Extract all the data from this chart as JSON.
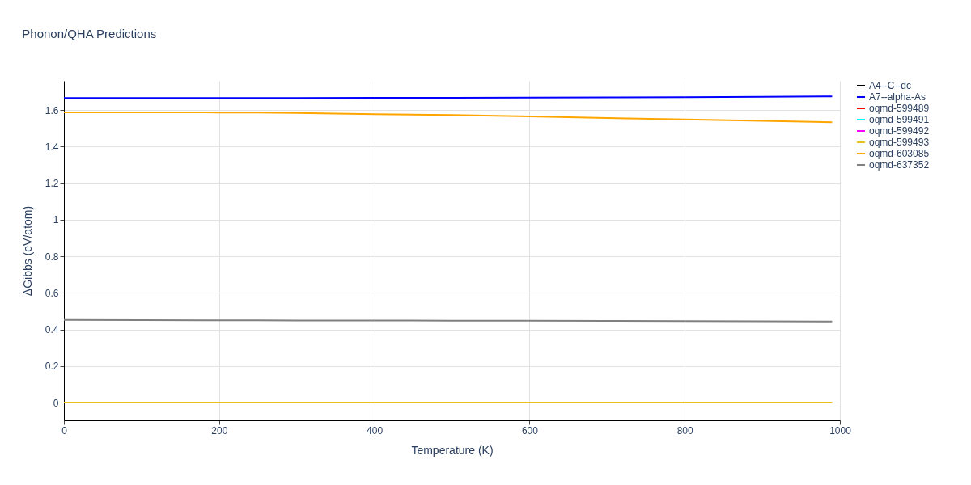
{
  "chart_data": {
    "type": "line",
    "title": "Phonon/QHA Predictions",
    "xlabel": "Temperature (K)",
    "ylabel": "ΔGibbs (eV/atom)",
    "x": [
      0,
      100,
      200,
      250,
      300,
      400,
      500,
      600,
      700,
      800,
      900,
      990
    ],
    "xlim": [
      0,
      1000
    ],
    "xticks": [
      0,
      200,
      400,
      600,
      800,
      1000
    ],
    "ylim": [
      -0.097,
      1.76
    ],
    "yticks": [
      0,
      0.2,
      0.4,
      0.6,
      0.8,
      1,
      1.2,
      1.4,
      1.6
    ],
    "grid": true,
    "legend": "top right",
    "line_style": "solid",
    "marker": "none",
    "series": [
      {
        "name": "A4--C--dc",
        "color": "#000000",
        "values": [
          null,
          null,
          null,
          null,
          null,
          null,
          null,
          null,
          null,
          null,
          null,
          null
        ]
      },
      {
        "name": "A7--alpha-As",
        "color": "#0000ff",
        "values": [
          1.666,
          1.666,
          1.666,
          1.666,
          1.666,
          1.667,
          1.667,
          1.668,
          1.669,
          1.671,
          1.673,
          1.675
        ]
      },
      {
        "name": "oqmd-599489",
        "color": "#ff0000",
        "values": [
          null,
          null,
          null,
          null,
          null,
          null,
          null,
          null,
          null,
          null,
          null,
          null
        ]
      },
      {
        "name": "oqmd-599491",
        "color": "#00ffff",
        "values": [
          null,
          null,
          null,
          null,
          null,
          null,
          null,
          null,
          null,
          null,
          null,
          null
        ]
      },
      {
        "name": "oqmd-599492",
        "color": "#ff00ff",
        "values": [
          null,
          null,
          null,
          null,
          null,
          null,
          null,
          null,
          null,
          null,
          null,
          null
        ]
      },
      {
        "name": "oqmd-599493",
        "color": "#e8c01a",
        "values": [
          0,
          0,
          0,
          0,
          0,
          0,
          0,
          0,
          0,
          0,
          0,
          0
        ]
      },
      {
        "name": "oqmd-603085",
        "color": "#ffa500",
        "values": [
          1.588,
          1.588,
          1.587,
          1.587,
          1.584,
          1.578,
          1.573,
          1.565,
          1.557,
          1.549,
          1.541,
          1.533
        ]
      },
      {
        "name": "oqmd-637352",
        "color": "#808080",
        "values": [
          0.452,
          0.451,
          0.45,
          0.45,
          0.449,
          0.449,
          0.448,
          0.448,
          0.447,
          0.446,
          0.445,
          0.443
        ]
      }
    ]
  }
}
